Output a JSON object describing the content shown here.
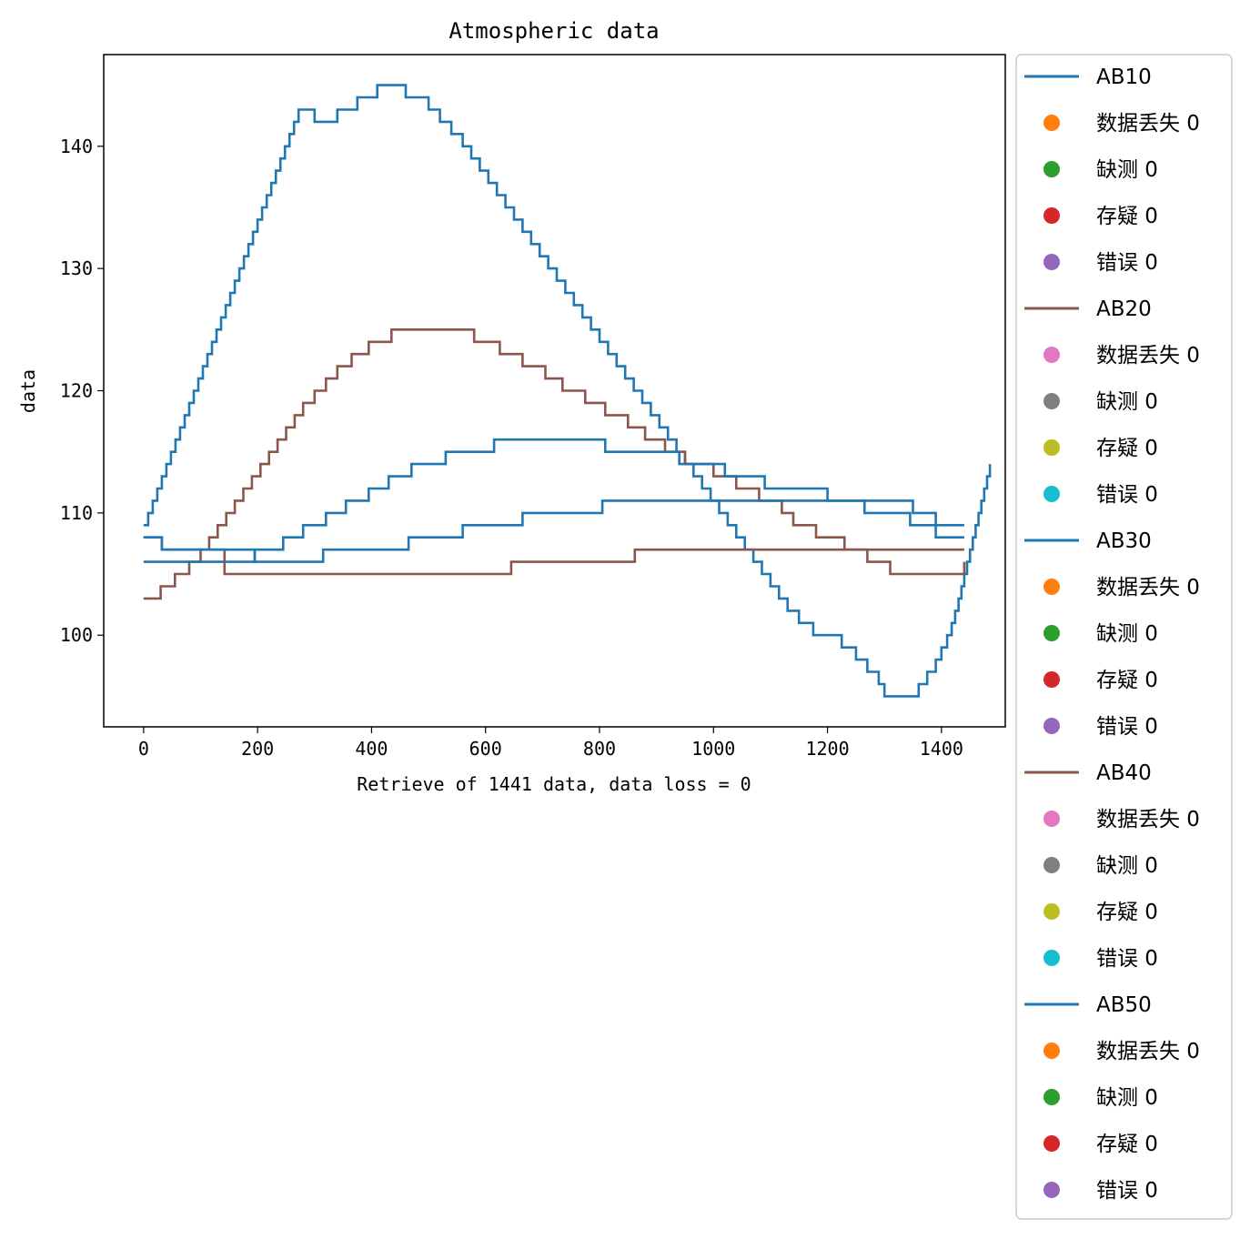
{
  "chart_data": {
    "type": "line",
    "title": "Atmospheric data",
    "xlabel": "Retrieve of 1441 data, data loss = 0",
    "ylabel": "data",
    "xlim": [
      -70,
      1512
    ],
    "ylim": [
      92.5,
      147.5
    ],
    "xticks": [
      0,
      200,
      400,
      600,
      800,
      1000,
      1200,
      1400
    ],
    "yticks": [
      100,
      110,
      120,
      130,
      140
    ],
    "grid": false,
    "legend_position": "outside-right",
    "series": [
      {
        "name": "AB10",
        "color": "#1f77b4",
        "points": [
          [
            0,
            109
          ],
          [
            8,
            110
          ],
          [
            16,
            111
          ],
          [
            24,
            112
          ],
          [
            32,
            113
          ],
          [
            40,
            114
          ],
          [
            48,
            115
          ],
          [
            56,
            116
          ],
          [
            64,
            117
          ],
          [
            72,
            118
          ],
          [
            80,
            119
          ],
          [
            88,
            120
          ],
          [
            96,
            121
          ],
          [
            104,
            122
          ],
          [
            112,
            123
          ],
          [
            120,
            124
          ],
          [
            128,
            125
          ],
          [
            136,
            126
          ],
          [
            144,
            127
          ],
          [
            152,
            128
          ],
          [
            160,
            129
          ],
          [
            168,
            130
          ],
          [
            176,
            131
          ],
          [
            184,
            132
          ],
          [
            192,
            133
          ],
          [
            200,
            134
          ],
          [
            208,
            135
          ],
          [
            216,
            136
          ],
          [
            224,
            137
          ],
          [
            232,
            138
          ],
          [
            240,
            139
          ],
          [
            248,
            140
          ],
          [
            256,
            141
          ],
          [
            264,
            142
          ],
          [
            272,
            143
          ],
          [
            300,
            142
          ],
          [
            340,
            143
          ],
          [
            375,
            144
          ],
          [
            410,
            145
          ],
          [
            450,
            145
          ],
          [
            460,
            144
          ],
          [
            500,
            143
          ],
          [
            520,
            142
          ],
          [
            540,
            141
          ],
          [
            560,
            140
          ],
          [
            575,
            139
          ],
          [
            590,
            138
          ],
          [
            605,
            137
          ],
          [
            620,
            136
          ],
          [
            635,
            135
          ],
          [
            650,
            134
          ],
          [
            665,
            133
          ],
          [
            680,
            132
          ],
          [
            695,
            131
          ],
          [
            710,
            130
          ],
          [
            725,
            129
          ],
          [
            740,
            128
          ],
          [
            755,
            127
          ],
          [
            770,
            126
          ],
          [
            785,
            125
          ],
          [
            800,
            124
          ],
          [
            815,
            123
          ],
          [
            830,
            122
          ],
          [
            845,
            121
          ],
          [
            860,
            120
          ],
          [
            875,
            119
          ],
          [
            890,
            118
          ],
          [
            905,
            117
          ],
          [
            920,
            116
          ],
          [
            935,
            115
          ],
          [
            950,
            114
          ],
          [
            965,
            113
          ],
          [
            980,
            112
          ],
          [
            995,
            111
          ],
          [
            1010,
            110
          ],
          [
            1025,
            109
          ],
          [
            1040,
            108
          ],
          [
            1055,
            107
          ],
          [
            1070,
            106
          ],
          [
            1085,
            105
          ],
          [
            1100,
            104
          ],
          [
            1115,
            103
          ],
          [
            1130,
            102
          ],
          [
            1150,
            101
          ],
          [
            1175,
            100
          ],
          [
            1225,
            99
          ],
          [
            1250,
            98
          ],
          [
            1270,
            97
          ],
          [
            1290,
            96
          ],
          [
            1300,
            95
          ],
          [
            1350,
            95
          ],
          [
            1360,
            96
          ],
          [
            1375,
            97
          ],
          [
            1390,
            98
          ],
          [
            1400,
            99
          ],
          [
            1410,
            100
          ],
          [
            1418,
            101
          ],
          [
            1424,
            102
          ],
          [
            1430,
            103
          ],
          [
            1435,
            104
          ],
          [
            1440,
            105
          ],
          [
            1445,
            106
          ],
          [
            1450,
            107
          ],
          [
            1455,
            108
          ],
          [
            1460,
            109
          ],
          [
            1465,
            110
          ],
          [
            1470,
            111
          ],
          [
            1475,
            112
          ],
          [
            1480,
            113
          ],
          [
            1485,
            114
          ]
        ]
      },
      {
        "name": "AB20",
        "color": "#8c564b",
        "points": [
          [
            0,
            103
          ],
          [
            30,
            104
          ],
          [
            55,
            105
          ],
          [
            80,
            106
          ],
          [
            100,
            107
          ],
          [
            115,
            108
          ],
          [
            130,
            109
          ],
          [
            145,
            110
          ],
          [
            160,
            111
          ],
          [
            175,
            112
          ],
          [
            190,
            113
          ],
          [
            205,
            114
          ],
          [
            220,
            115
          ],
          [
            235,
            116
          ],
          [
            250,
            117
          ],
          [
            265,
            118
          ],
          [
            280,
            119
          ],
          [
            300,
            120
          ],
          [
            320,
            121
          ],
          [
            340,
            122
          ],
          [
            365,
            123
          ],
          [
            395,
            124
          ],
          [
            435,
            125
          ],
          [
            575,
            125
          ],
          [
            580,
            124
          ],
          [
            625,
            123
          ],
          [
            665,
            122
          ],
          [
            705,
            121
          ],
          [
            735,
            120
          ],
          [
            775,
            119
          ],
          [
            810,
            118
          ],
          [
            850,
            117
          ],
          [
            880,
            116
          ],
          [
            915,
            115
          ],
          [
            950,
            114
          ],
          [
            1000,
            113
          ],
          [
            1040,
            112
          ],
          [
            1080,
            111
          ],
          [
            1120,
            110
          ],
          [
            1140,
            109
          ],
          [
            1180,
            108
          ],
          [
            1230,
            107
          ],
          [
            1270,
            106
          ],
          [
            1310,
            105
          ],
          [
            1380,
            105
          ],
          [
            1440,
            106
          ]
        ]
      },
      {
        "name": "AB30",
        "color": "#1f77b4",
        "points": [
          [
            0,
            106
          ],
          [
            185,
            106
          ],
          [
            195,
            107
          ],
          [
            245,
            108
          ],
          [
            280,
            109
          ],
          [
            320,
            110
          ],
          [
            355,
            111
          ],
          [
            395,
            112
          ],
          [
            430,
            113
          ],
          [
            470,
            114
          ],
          [
            530,
            115
          ],
          [
            615,
            116
          ],
          [
            680,
            116
          ],
          [
            810,
            115
          ],
          [
            940,
            114
          ],
          [
            1020,
            113
          ],
          [
            1090,
            112
          ],
          [
            1200,
            111
          ],
          [
            1265,
            110
          ],
          [
            1345,
            109
          ],
          [
            1440,
            109
          ]
        ]
      },
      {
        "name": "AB40",
        "color": "#8c564b",
        "points": [
          [
            0,
            108
          ],
          [
            28,
            108
          ],
          [
            32,
            107
          ],
          [
            140,
            107
          ],
          [
            142,
            105
          ],
          [
            190,
            105
          ],
          [
            640,
            105
          ],
          [
            645,
            106
          ],
          [
            860,
            106
          ],
          [
            862,
            107
          ],
          [
            1440,
            107
          ]
        ]
      },
      {
        "name": "AB50",
        "color": "#1f77b4",
        "points": [
          [
            0,
            108
          ],
          [
            30,
            108
          ],
          [
            32,
            107
          ],
          [
            190,
            107
          ],
          [
            195,
            106
          ],
          [
            310,
            106
          ],
          [
            315,
            107
          ],
          [
            460,
            107
          ],
          [
            465,
            108
          ],
          [
            555,
            108
          ],
          [
            560,
            109
          ],
          [
            660,
            109
          ],
          [
            665,
            110
          ],
          [
            800,
            110
          ],
          [
            805,
            111
          ],
          [
            1345,
            111
          ],
          [
            1350,
            110
          ],
          [
            1385,
            110
          ],
          [
            1390,
            108
          ],
          [
            1440,
            108
          ]
        ]
      }
    ],
    "legend": [
      {
        "label": "AB10",
        "kind": "line",
        "color": "#1f77b4"
      },
      {
        "label": "数据丢失 0",
        "kind": "dot",
        "color": "#ff7f0e"
      },
      {
        "label": "缺测 0",
        "kind": "dot",
        "color": "#2ca02c"
      },
      {
        "label": "存疑 0",
        "kind": "dot",
        "color": "#d62728"
      },
      {
        "label": "错误 0",
        "kind": "dot",
        "color": "#9467bd"
      },
      {
        "label": "AB20",
        "kind": "line",
        "color": "#8c564b"
      },
      {
        "label": "数据丢失 0",
        "kind": "dot",
        "color": "#e377c2"
      },
      {
        "label": "缺测 0",
        "kind": "dot",
        "color": "#7f7f7f"
      },
      {
        "label": "存疑 0",
        "kind": "dot",
        "color": "#bcbd22"
      },
      {
        "label": "错误 0",
        "kind": "dot",
        "color": "#17becf"
      },
      {
        "label": "AB30",
        "kind": "line",
        "color": "#1f77b4"
      },
      {
        "label": "数据丢失 0",
        "kind": "dot",
        "color": "#ff7f0e"
      },
      {
        "label": "缺测 0",
        "kind": "dot",
        "color": "#2ca02c"
      },
      {
        "label": "存疑 0",
        "kind": "dot",
        "color": "#d62728"
      },
      {
        "label": "错误 0",
        "kind": "dot",
        "color": "#9467bd"
      },
      {
        "label": "AB40",
        "kind": "line",
        "color": "#8c564b"
      },
      {
        "label": "数据丢失 0",
        "kind": "dot",
        "color": "#e377c2"
      },
      {
        "label": "缺测 0",
        "kind": "dot",
        "color": "#7f7f7f"
      },
      {
        "label": "存疑 0",
        "kind": "dot",
        "color": "#bcbd22"
      },
      {
        "label": "错误 0",
        "kind": "dot",
        "color": "#17becf"
      },
      {
        "label": "AB50",
        "kind": "line",
        "color": "#1f77b4"
      },
      {
        "label": "数据丢失 0",
        "kind": "dot",
        "color": "#ff7f0e"
      },
      {
        "label": "缺测 0",
        "kind": "dot",
        "color": "#2ca02c"
      },
      {
        "label": "存疑 0",
        "kind": "dot",
        "color": "#d62728"
      },
      {
        "label": "错误 0",
        "kind": "dot",
        "color": "#9467bd"
      }
    ]
  }
}
